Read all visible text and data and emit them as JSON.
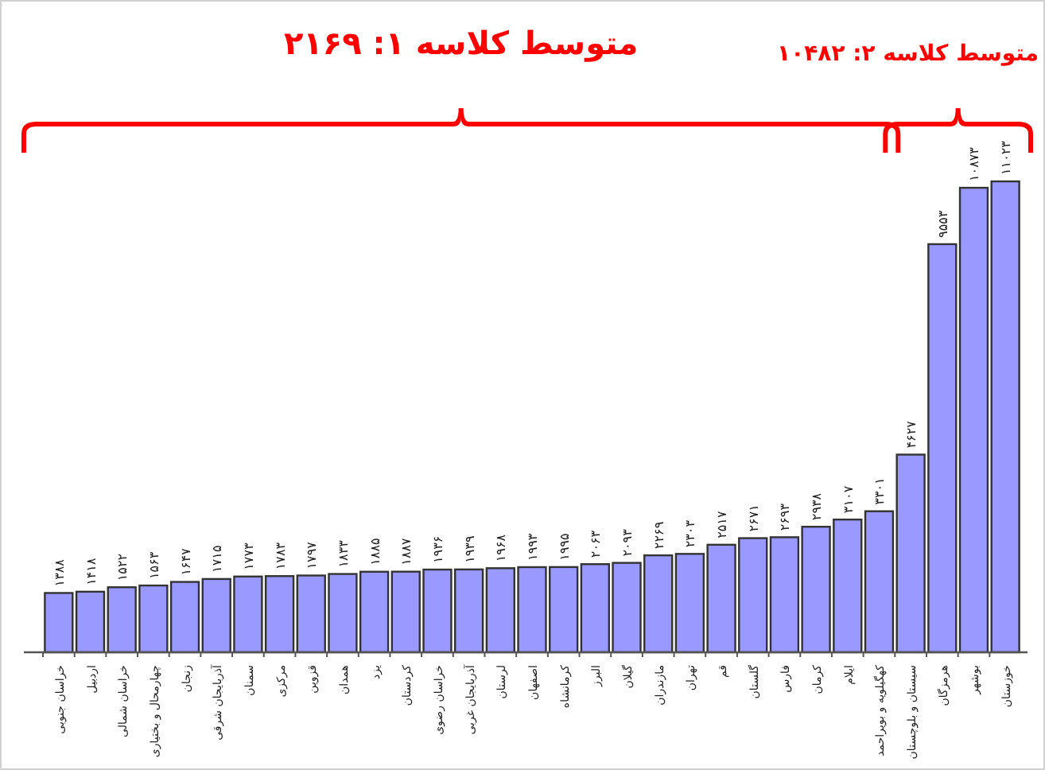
{
  "chart_data": {
    "type": "bar",
    "categories": [
      "خراسان جنوبی",
      "اردبیل",
      "خراسان شمالی",
      "چهارمحال و بختیاری",
      "زنجان",
      "آذربایجان شرقی",
      "سمنان",
      "مرکزی",
      "قزوین",
      "همدان",
      "یزد",
      "کردستان",
      "خراسان رضوی",
      "آذربایجان غربی",
      "لرستان",
      "اصفهان",
      "کرمانشاه",
      "البرز",
      "گیلان",
      "مازندران",
      "تهران",
      "قم",
      "گلستان",
      "فارس",
      "کرمان",
      "ایلام",
      "کهگیلویه و بویراحمد",
      "سیستان و بلوچستان",
      "هرمزگان",
      "بوشهر",
      "خوزستان"
    ],
    "values": [
      1388,
      1418,
      1522,
      1563,
      1647,
      1715,
      1773,
      1783,
      1797,
      1833,
      1885,
      1887,
      1936,
      1939,
      1968,
      1993,
      1995,
      2063,
      2093,
      2269,
      2303,
      2517,
      2671,
      2693,
      2938,
      3107,
      3301,
      4627,
      9553,
      10873,
      11023
    ],
    "value_labels": [
      "۱۳۸۸",
      "۱۴۱۸",
      "۱۵۲۲",
      "۱۵۶۳",
      "۱۶۴۷",
      "۱۷۱۵",
      "۱۷۷۳",
      "۱۷۸۳",
      "۱۷۹۷",
      "۱۸۳۳",
      "۱۸۸۵",
      "۱۸۸۷",
      "۱۹۳۶",
      "۱۹۳۹",
      "۱۹۶۸",
      "۱۹۹۳",
      "۱۹۹۵",
      "۲۰۶۳",
      "۲۰۹۳",
      "۲۲۶۹",
      "۲۳۰۳",
      "۲۵۱۷",
      "۲۶۷۱",
      "۲۶۹۳",
      "۲۹۳۸",
      "۳۱۰۷",
      "۳۳۰۱",
      "۴۶۲۷",
      "۹۵۵۳",
      "۱۰۸۷۳",
      "۱۱۰۲۳"
    ],
    "color": "#9999ff",
    "annotations": [
      "متوسط کلاسه ۱:  ۲۱۶۹",
      "متوسط کلاسه ۲:  ۱۰۴۸۲"
    ]
  }
}
